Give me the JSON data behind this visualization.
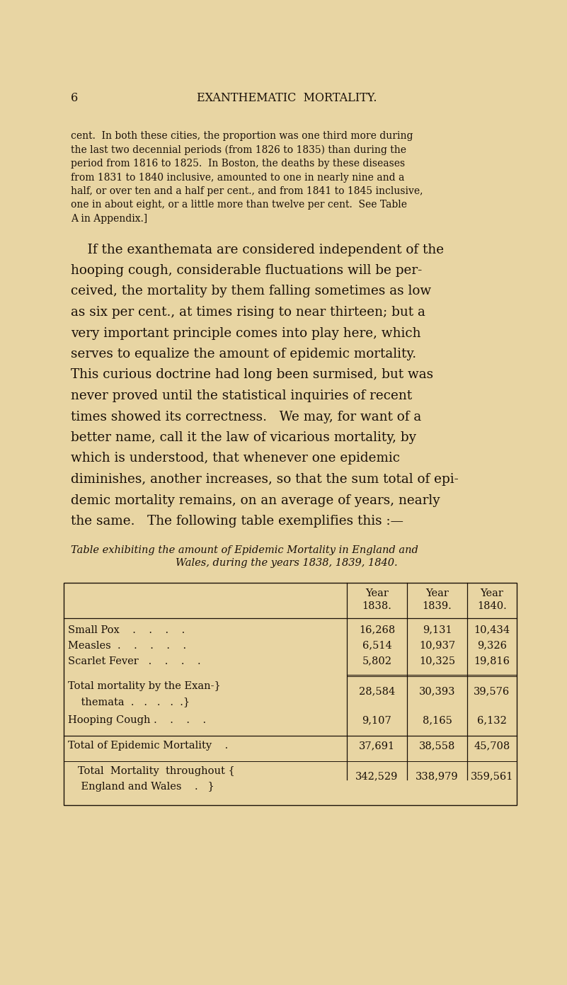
{
  "bg_color": "#e8d5a3",
  "text_color": "#1a1008",
  "page_number": "6",
  "page_header": "EXANTHEMATIC  MORTALITY.",
  "paragraph1_lines": [
    "cent.  In both these cities, the proportion was one third more during",
    "the last two decennial periods (from 1826 to 1835) than during the",
    "period from 1816 to 1825.  In Boston, the deaths by these diseases",
    "from 1831 to 1840 inclusive, amounted to one in nearly nine and a",
    "half, or over ten and a half per cent., and from 1841 to 1845 inclusive,",
    "one in about eight, or a little more than twelve per cent.  See Table",
    "A in Appendix.]"
  ],
  "paragraph2_lines": [
    "    If the exanthemata are considered independent of the",
    "hooping cough, considerable fluctuations will be per-",
    "ceived, the mortality by them falling sometimes as low",
    "as six per cent., at times rising to near thirteen; but a",
    "very important principle comes into play here, which",
    "serves to equalize the amount of epidemic mortality.",
    "This curious doctrine had long been surmised, but was",
    "never proved until the statistical inquiries of recent",
    "times showed its correctness.   We may, for want of a",
    "better name, call it the law of vicarious mortality, by",
    "which is understood, that whenever one epidemic",
    "diminishes, another increases, so that the sum total of epi-",
    "demic mortality remains, on an average of years, nearly",
    "the same.   The following table exemplifies this :—"
  ],
  "table_caption_line1": "Table exhibiting the amount of Epidemic Mortality in England and",
  "table_caption_line2": "Wales, during the years 1838, 1839, 1840.",
  "col_headers": [
    "Year\n1838.",
    "Year\n1839.",
    "Year\n1840."
  ],
  "row1_label": "Small Pox    .    .    .    .",
  "row1_vals": [
    "16,268",
    "9,131",
    "10,434"
  ],
  "row2_label": "Measles  .    .    .    .    .",
  "row2_vals": [
    "6,514",
    "10,937",
    "9,326"
  ],
  "row3_label": "Scarlet Fever   .    .    .    .",
  "row3_vals": [
    "5,802",
    "10,325",
    "19,816"
  ],
  "row4a_label": "Total mortality by the Exan-}",
  "row4b_label": "    themata  .   .   .   .  .}",
  "row4_vals": [
    "28,584",
    "30,393",
    "39,576"
  ],
  "row5_label": "Hooping Cough .    .    .    .",
  "row5_vals": [
    "9,107",
    "8,165",
    "6,132"
  ],
  "row6_label": "Total of Epidemic Mortality    .",
  "row6_vals": [
    "37,691",
    "38,558",
    "45,708"
  ],
  "row7a_label": "   Total  Mortality  throughout {",
  "row7b_label": "    England and Wales    .   }",
  "row7_vals": [
    "342,529",
    "338,979",
    "359,561"
  ],
  "p1_fontsize": 10.0,
  "p1_lineheight": 19.5,
  "p2_fontsize": 13.2,
  "p2_lineheight": 29.5,
  "table_fontsize": 10.5,
  "caption_fontsize": 10.5,
  "header_fontsize": 11.5
}
